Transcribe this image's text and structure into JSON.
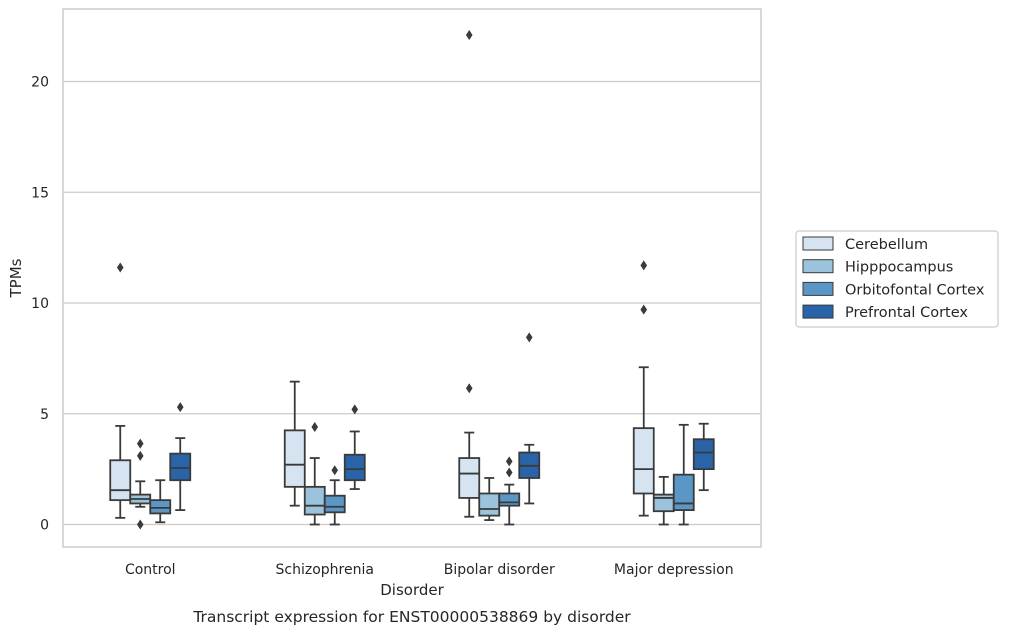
{
  "chart_data": {
    "type": "box",
    "xlabel": "Disorder",
    "ylabel": "TPMs",
    "caption": "Transcript expression for ENST00000538869 by disorder",
    "categories": [
      "Control",
      "Schizophrenia",
      "Bipolar disorder",
      "Major depression"
    ],
    "ylim": [
      -1.05,
      23.2
    ],
    "yticks": [
      0,
      5,
      10,
      15,
      20
    ],
    "grid": "horizontal",
    "legend_position": "right",
    "series": [
      {
        "name": "Cerebellum",
        "color": "#d6e3f1",
        "boxes": [
          {
            "whisker_low": 0.3,
            "q1": 1.1,
            "median": 1.55,
            "q3": 2.9,
            "whisker_high": 4.45,
            "outliers": [
              11.6
            ]
          },
          {
            "whisker_low": 0.85,
            "q1": 1.7,
            "median": 2.7,
            "q3": 4.25,
            "whisker_high": 6.45,
            "outliers": []
          },
          {
            "whisker_low": 0.35,
            "q1": 1.2,
            "median": 2.3,
            "q3": 3.0,
            "whisker_high": 4.15,
            "outliers": [
              6.15,
              22.1
            ]
          },
          {
            "whisker_low": 0.4,
            "q1": 1.4,
            "median": 2.5,
            "q3": 4.35,
            "whisker_high": 7.1,
            "outliers": [
              9.7,
              11.7
            ]
          }
        ]
      },
      {
        "name": "Hipppocampus",
        "color": "#9cc3dc",
        "boxes": [
          {
            "whisker_low": 0.8,
            "q1": 0.95,
            "median": 1.15,
            "q3": 1.35,
            "whisker_high": 1.95,
            "outliers": [
              0.0,
              3.1,
              3.65
            ]
          },
          {
            "whisker_low": 0.0,
            "q1": 0.45,
            "median": 0.85,
            "q3": 1.7,
            "whisker_high": 3.0,
            "outliers": [
              4.4
            ]
          },
          {
            "whisker_low": 0.2,
            "q1": 0.4,
            "median": 0.7,
            "q3": 1.4,
            "whisker_high": 2.1,
            "outliers": []
          },
          {
            "whisker_low": 0.0,
            "q1": 0.6,
            "median": 1.2,
            "q3": 1.35,
            "whisker_high": 2.15,
            "outliers": []
          }
        ]
      },
      {
        "name": "Orbitofontal Cortex",
        "color": "#5a97c6",
        "boxes": [
          {
            "whisker_low": 0.1,
            "q1": 0.5,
            "median": 0.75,
            "q3": 1.1,
            "whisker_high": 2.0,
            "outliers": []
          },
          {
            "whisker_low": 0.0,
            "q1": 0.55,
            "median": 0.8,
            "q3": 1.3,
            "whisker_high": 2.0,
            "outliers": [
              2.45
            ]
          },
          {
            "whisker_low": 0.0,
            "q1": 0.85,
            "median": 1.0,
            "q3": 1.4,
            "whisker_high": 1.8,
            "outliers": [
              2.35,
              2.85
            ]
          },
          {
            "whisker_low": 0.0,
            "q1": 0.65,
            "median": 0.95,
            "q3": 2.25,
            "whisker_high": 4.5,
            "outliers": []
          }
        ]
      },
      {
        "name": "Prefrontal Cortex",
        "color": "#2a64a8",
        "boxes": [
          {
            "whisker_low": 0.65,
            "q1": 2.0,
            "median": 2.55,
            "q3": 3.2,
            "whisker_high": 3.9,
            "outliers": [
              5.3
            ]
          },
          {
            "whisker_low": 1.6,
            "q1": 2.0,
            "median": 2.5,
            "q3": 3.15,
            "whisker_high": 4.2,
            "outliers": [
              5.2
            ]
          },
          {
            "whisker_low": 0.95,
            "q1": 2.1,
            "median": 2.65,
            "q3": 3.25,
            "whisker_high": 3.6,
            "outliers": [
              8.45
            ]
          },
          {
            "whisker_low": 1.55,
            "q1": 2.5,
            "median": 3.25,
            "q3": 3.85,
            "whisker_high": 4.55,
            "outliers": []
          }
        ]
      }
    ]
  }
}
